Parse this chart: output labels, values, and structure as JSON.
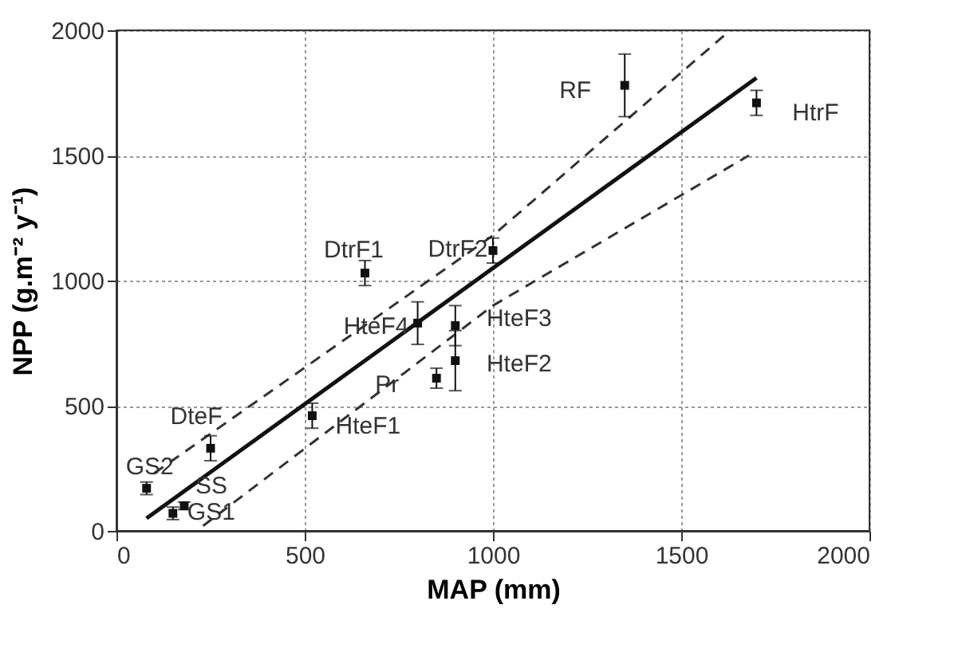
{
  "chart_data": {
    "type": "scatter",
    "xlabel": "MAP (mm)",
    "ylabel": "NPP (g.m⁻² y⁻¹)",
    "xlim": [
      0,
      2000
    ],
    "xticks": [
      0,
      500,
      1000,
      1500,
      2000
    ],
    "ylim": [
      0,
      2000
    ],
    "yticks": [
      0,
      500,
      1000,
      1500,
      2000
    ],
    "grid": true,
    "series": [
      {
        "type": "scatter",
        "color": "#111111",
        "marker": "square",
        "x": [
          80,
          150,
          180,
          250,
          520,
          660,
          800,
          850,
          900,
          900,
          1000,
          1350,
          1700
        ],
        "values": [
          170,
          70,
          100,
          330,
          460,
          1030,
          830,
          610,
          820,
          680,
          1120,
          1780,
          1710
        ],
        "errors": [
          25,
          25,
          15,
          50,
          50,
          50,
          85,
          40,
          80,
          120,
          50,
          125,
          50
        ]
      },
      {
        "type": "line",
        "color": "#111111",
        "line_style": "solid",
        "x": [
          80,
          1700
        ],
        "values": [
          50,
          1810
        ]
      },
      {
        "type": "line",
        "color": "#333333",
        "line_style": "dashed",
        "x": [
          100,
          1000,
          1630
        ],
        "values": [
          230,
          1180,
          2000
        ]
      },
      {
        "type": "line",
        "color": "#333333",
        "line_style": "dashed",
        "x": [
          230,
          1000,
          1680
        ],
        "values": [
          20,
          900,
          1500
        ]
      }
    ],
    "annotations": [
      {
        "text": "GS2",
        "x": 80,
        "y": 170
      },
      {
        "text": "GS1",
        "x": 150,
        "y": 70
      },
      {
        "text": "SS",
        "x": 180,
        "y": 100
      },
      {
        "text": "DteF",
        "x": 250,
        "y": 330
      },
      {
        "text": "HteF1",
        "x": 520,
        "y": 460
      },
      {
        "text": "DtrF1",
        "x": 660,
        "y": 1030
      },
      {
        "text": "HteF4",
        "x": 800,
        "y": 830
      },
      {
        "text": "Pr",
        "x": 850,
        "y": 610
      },
      {
        "text": "HteF3",
        "x": 900,
        "y": 820
      },
      {
        "text": "HteF2",
        "x": 900,
        "y": 680
      },
      {
        "text": "DtrF2",
        "x": 1000,
        "y": 1120
      },
      {
        "text": "RF",
        "x": 1350,
        "y": 1780
      },
      {
        "text": "HtrF",
        "x": 1700,
        "y": 1710
      }
    ]
  }
}
